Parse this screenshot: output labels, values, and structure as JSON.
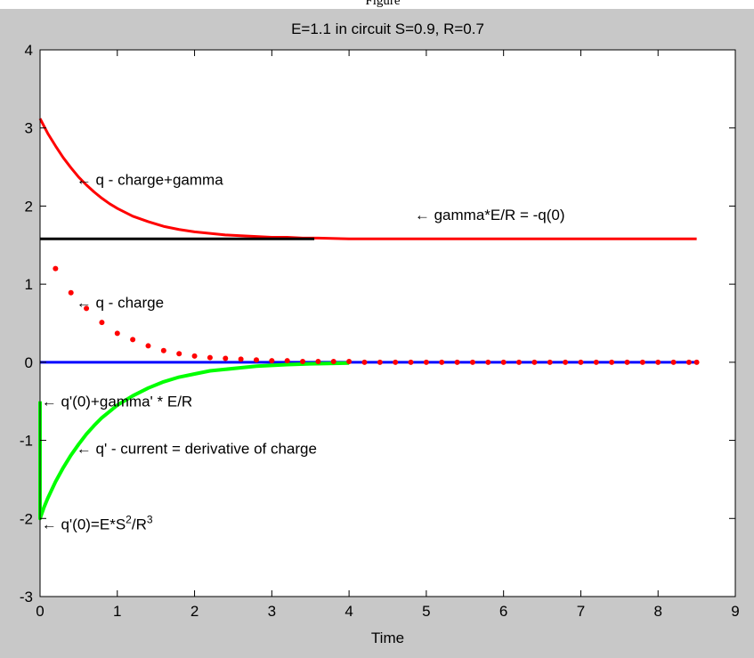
{
  "page": {
    "caption": "Figure"
  },
  "chart_data": {
    "type": "line",
    "title": "E=1.1 in circuit S=0.9, R=0.7",
    "xlabel": "Time",
    "ylabel": "",
    "xlim": [
      0,
      9
    ],
    "ylim": [
      -3,
      4
    ],
    "xticks": [
      "0",
      "1",
      "2",
      "3",
      "4",
      "5",
      "6",
      "7",
      "8",
      "9"
    ],
    "yticks": [
      "-3",
      "-2",
      "-1",
      "0",
      "1",
      "2",
      "3",
      "4"
    ],
    "grid": false,
    "colors": {
      "figure_bg": "#c8c8c8",
      "axes_bg": "#ffffff",
      "red": "#ff0000",
      "black": "#000000",
      "blue": "#0000ff",
      "green": "#00ff00"
    },
    "series": [
      {
        "style": "line",
        "color": "#ff0000",
        "x": [
          0,
          0.1,
          0.2,
          0.3,
          0.4,
          0.5,
          0.6,
          0.7,
          0.8,
          0.9,
          1.0,
          1.2,
          1.4,
          1.6,
          1.8,
          2.0,
          2.2,
          2.4,
          2.6,
          2.8,
          3.0,
          3.2,
          3.4,
          3.6,
          4.0,
          5.0,
          6.0,
          7.0,
          8.0,
          8.5
        ],
        "y": [
          3.12,
          2.93,
          2.77,
          2.62,
          2.49,
          2.37,
          2.27,
          2.18,
          2.1,
          2.03,
          1.97,
          1.87,
          1.8,
          1.74,
          1.7,
          1.67,
          1.65,
          1.63,
          1.62,
          1.61,
          1.6,
          1.6,
          1.59,
          1.59,
          1.58,
          1.58,
          1.58,
          1.58,
          1.58,
          1.58
        ]
      },
      {
        "style": "line",
        "color": "#000000",
        "x": [
          0,
          3.55
        ],
        "y": [
          1.58,
          1.58
        ]
      },
      {
        "style": "line",
        "color": "#0000ff",
        "x": [
          0,
          8.5
        ],
        "y": [
          0,
          0
        ]
      },
      {
        "style": "line",
        "color": "#00ff00",
        "x": [
          0,
          0,
          0.05,
          0.1,
          0.2,
          0.3,
          0.4,
          0.5,
          0.6,
          0.7,
          0.8,
          1.0,
          1.2,
          1.4,
          1.6,
          1.8,
          2.0,
          2.2,
          2.4,
          2.6,
          2.8,
          3.0,
          3.2,
          3.5,
          4.0
        ],
        "y": [
          -0.5,
          -2.0,
          -1.86,
          -1.74,
          -1.53,
          -1.35,
          -1.19,
          -1.05,
          -0.92,
          -0.81,
          -0.71,
          -0.55,
          -0.43,
          -0.33,
          -0.25,
          -0.19,
          -0.15,
          -0.11,
          -0.09,
          -0.07,
          -0.05,
          -0.04,
          -0.03,
          -0.02,
          -0.01
        ]
      },
      {
        "style": "markers",
        "color": "#ff0000",
        "x": [
          0.2,
          0.4,
          0.6,
          0.8,
          1.0,
          1.2,
          1.4,
          1.6,
          1.8,
          2.0,
          2.2,
          2.4,
          2.6,
          2.8,
          3.0,
          3.2,
          3.4,
          3.6,
          3.8,
          4.0,
          4.2,
          4.4,
          4.6,
          4.8,
          5.0,
          5.2,
          5.4,
          5.6,
          5.8,
          6.0,
          6.2,
          6.4,
          6.6,
          6.8,
          7.0,
          7.2,
          7.4,
          7.6,
          7.8,
          8.0,
          8.2,
          8.4,
          8.5
        ],
        "y": [
          1.2,
          0.89,
          0.69,
          0.51,
          0.37,
          0.29,
          0.21,
          0.15,
          0.11,
          0.08,
          0.06,
          0.05,
          0.04,
          0.03,
          0.02,
          0.02,
          0.01,
          0.01,
          0.01,
          0.01,
          0,
          0,
          0,
          0,
          0,
          0,
          0,
          0,
          0,
          0,
          0,
          0,
          0,
          0,
          0,
          0,
          0,
          0,
          0,
          0,
          0,
          0,
          0
        ]
      }
    ],
    "annotations": [
      {
        "x": 0.47,
        "y": 2.34,
        "text": "← q - charge+gamma"
      },
      {
        "x": 4.85,
        "y": 1.89,
        "text": "← gamma*E/R = -q(0)"
      },
      {
        "x": 0.47,
        "y": 0.77,
        "text": "← q - charge"
      },
      {
        "x": 0.02,
        "y": -0.5,
        "text": "← q'(0)+gamma' * E/R"
      },
      {
        "x": 0.47,
        "y": -1.1,
        "text": "← q' - current = derivative of charge"
      },
      {
        "x": 0.02,
        "y": -2.07,
        "text_before": "← q'(0)=E*S",
        "sup1": "2",
        "text_mid": "/R",
        "sup2": "3"
      }
    ]
  }
}
